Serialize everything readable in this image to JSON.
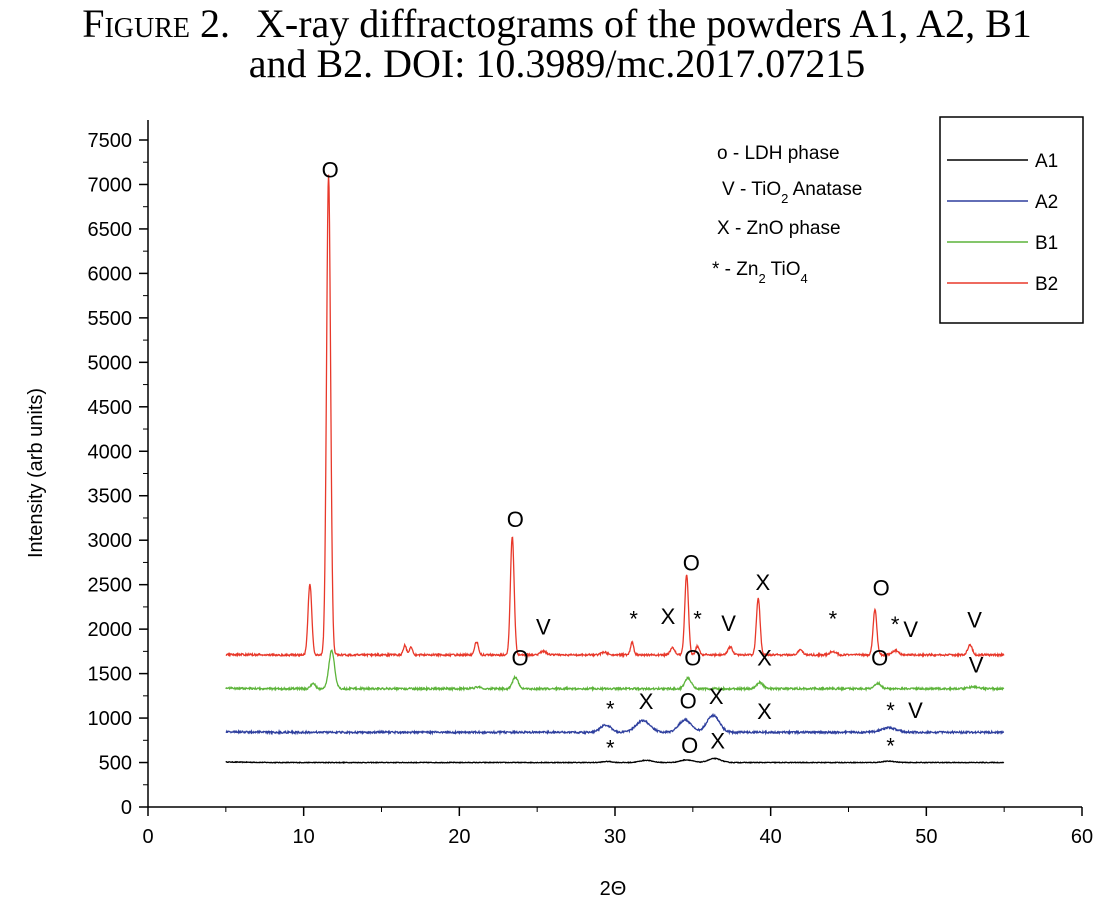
{
  "caption": {
    "figure_label": "Figure 2.",
    "line1": "X-ray diffractograms of the powders A1, A2, B1",
    "line2": "and B2. DOI: 10.3989/mc.2017.07215"
  },
  "chart_data": {
    "type": "line",
    "xlabel": "2Θ",
    "ylabel": "Intensity (arb units)",
    "xlim": [
      0,
      60
    ],
    "ylim": [
      0,
      7500
    ],
    "x_ticks": [
      0,
      10,
      20,
      30,
      40,
      50,
      60
    ],
    "y_ticks": [
      0,
      500,
      1000,
      1500,
      2000,
      2500,
      3000,
      3500,
      4000,
      4500,
      5000,
      5500,
      6000,
      6500,
      7000,
      7500
    ],
    "grid": false,
    "legend_position": "top-right",
    "x_range": [
      5,
      55
    ],
    "series": [
      {
        "name": "A1",
        "color": "#000000",
        "baseline": 500,
        "peaks": [
          [
            29.5,
            12,
            0.3
          ],
          [
            32.0,
            25,
            0.4
          ],
          [
            34.6,
            30,
            0.4
          ],
          [
            36.4,
            45,
            0.4
          ],
          [
            47.6,
            15,
            0.4
          ]
        ]
      },
      {
        "name": "A2",
        "color": "#2e3f9e",
        "baseline": 840,
        "peaks": [
          [
            29.4,
            80,
            0.35
          ],
          [
            31.8,
            130,
            0.45
          ],
          [
            34.5,
            140,
            0.4
          ],
          [
            36.3,
            190,
            0.4
          ],
          [
            47.6,
            50,
            0.5
          ]
        ]
      },
      {
        "name": "B1",
        "color": "#5cb43a",
        "baseline": 1330,
        "peaks": [
          [
            10.6,
            60,
            0.15
          ],
          [
            11.8,
            430,
            0.18
          ],
          [
            21.2,
            20,
            0.2
          ],
          [
            23.6,
            130,
            0.18
          ],
          [
            34.7,
            120,
            0.2
          ],
          [
            39.3,
            70,
            0.2
          ],
          [
            46.9,
            60,
            0.2
          ],
          [
            53.0,
            20,
            0.3
          ]
        ]
      },
      {
        "name": "B2",
        "color": "#e8382a",
        "baseline": 1710,
        "peaks": [
          [
            10.4,
            800,
            0.12
          ],
          [
            11.6,
            5400,
            0.13
          ],
          [
            16.5,
            110,
            0.1
          ],
          [
            16.9,
            90,
            0.1
          ],
          [
            21.1,
            150,
            0.12
          ],
          [
            23.4,
            1330,
            0.12
          ],
          [
            25.4,
            40,
            0.2
          ],
          [
            29.3,
            30,
            0.2
          ],
          [
            31.1,
            140,
            0.1
          ],
          [
            33.7,
            80,
            0.15
          ],
          [
            34.6,
            900,
            0.12
          ],
          [
            35.3,
            100,
            0.12
          ],
          [
            37.4,
            90,
            0.15
          ],
          [
            39.2,
            640,
            0.12
          ],
          [
            41.9,
            60,
            0.15
          ],
          [
            44.0,
            40,
            0.2
          ],
          [
            46.7,
            510,
            0.12
          ],
          [
            48.0,
            50,
            0.2
          ],
          [
            52.8,
            110,
            0.15
          ]
        ]
      }
    ],
    "peak_annotations": [
      {
        "text": "O",
        "x": 11.7,
        "y": 7080
      },
      {
        "text": "O",
        "x": 23.6,
        "y": 3150
      },
      {
        "text": "V",
        "x": 25.4,
        "y": 1940
      },
      {
        "text": "*",
        "x": 31.2,
        "y": 2030
      },
      {
        "text": "X",
        "x": 33.4,
        "y": 2060
      },
      {
        "text": "*",
        "x": 35.3,
        "y": 2030
      },
      {
        "text": "V",
        "x": 37.3,
        "y": 1980
      },
      {
        "text": "O",
        "x": 34.9,
        "y": 2660
      },
      {
        "text": "X",
        "x": 39.5,
        "y": 2440
      },
      {
        "text": "*",
        "x": 44.0,
        "y": 2030
      },
      {
        "text": "O",
        "x": 47.1,
        "y": 2380
      },
      {
        "text": "*",
        "x": 48.0,
        "y": 1970
      },
      {
        "text": "V",
        "x": 49.0,
        "y": 1910
      },
      {
        "text": "V",
        "x": 53.1,
        "y": 2020
      },
      {
        "text": "O",
        "x": 23.9,
        "y": 1590
      },
      {
        "text": "O",
        "x": 35.0,
        "y": 1590
      },
      {
        "text": "X",
        "x": 39.6,
        "y": 1590
      },
      {
        "text": "O",
        "x": 47.0,
        "y": 1590
      },
      {
        "text": "V",
        "x": 53.2,
        "y": 1510
      },
      {
        "text": "*",
        "x": 29.7,
        "y": 1020
      },
      {
        "text": "X",
        "x": 32.0,
        "y": 1100
      },
      {
        "text": "O",
        "x": 34.7,
        "y": 1110
      },
      {
        "text": "X",
        "x": 36.5,
        "y": 1160
      },
      {
        "text": "X",
        "x": 39.6,
        "y": 990
      },
      {
        "text": "*",
        "x": 47.7,
        "y": 1000
      },
      {
        "text": "V",
        "x": 49.3,
        "y": 1000
      },
      {
        "text": "*",
        "x": 29.7,
        "y": 580
      },
      {
        "text": "O",
        "x": 34.8,
        "y": 610
      },
      {
        "text": "X",
        "x": 36.6,
        "y": 660
      },
      {
        "text": "*",
        "x": 47.7,
        "y": 600
      }
    ],
    "phase_key": [
      {
        "symbol": "o",
        "desc": "LDH phase"
      },
      {
        "symbol": "V",
        "desc": "TiO",
        "sub": "2",
        "desc_after": " Anatase"
      },
      {
        "symbol": "X",
        "desc": "ZnO phase"
      },
      {
        "symbol": "*",
        "desc": "Zn",
        "sub": "2",
        "desc_after": " TiO",
        "sub2": "4"
      }
    ]
  }
}
